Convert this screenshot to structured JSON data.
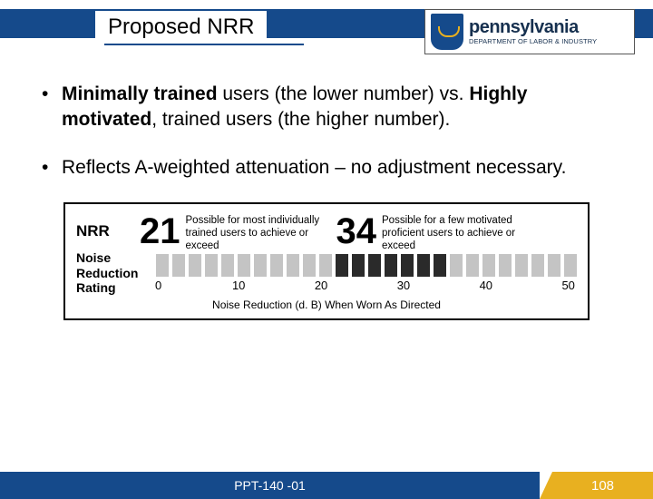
{
  "title": "Proposed NRR",
  "logo": {
    "main": "pennsylvania",
    "sub": "DEPARTMENT OF LABOR & INDUSTRY"
  },
  "bullets": [
    {
      "segments": [
        {
          "t": "Minimally trained",
          "b": true
        },
        {
          "t": " users (the lower number) vs. ",
          "b": false
        },
        {
          "t": "Highly motivated",
          "b": true
        },
        {
          "t": ", trained users (the higher number).",
          "b": false
        }
      ]
    },
    {
      "segments": [
        {
          "t": "Reflects A-weighted attenuation – no adjustment necessary.",
          "b": false
        }
      ]
    }
  ],
  "nrr": {
    "label": "NRR",
    "sublabel": "Noise Reduction Rating",
    "pair1": {
      "value": "21",
      "desc": "Possible for most individually trained users to achieve or exceed"
    },
    "pair2": {
      "value": "34",
      "desc": "Possible for a few motivated proficient users to achieve or exceed"
    },
    "chart": {
      "bar_colors_light": "#c4c4c4",
      "bar_colors_dark": "#2a2a2a",
      "bar_count": 26,
      "dark_start_index": 11,
      "dark_end_index": 17,
      "ticks": [
        "0",
        "10",
        "20",
        "30",
        "40",
        "50"
      ],
      "tick_positions_pct": [
        1,
        20,
        39.5,
        59,
        78.5,
        98
      ],
      "caption": "Noise Reduction (d. B) When Worn As Directed"
    }
  },
  "footer": {
    "code": "PPT-140 -01",
    "page": "108"
  },
  "colors": {
    "blue": "#154a8b",
    "gold": "#e8b020"
  }
}
